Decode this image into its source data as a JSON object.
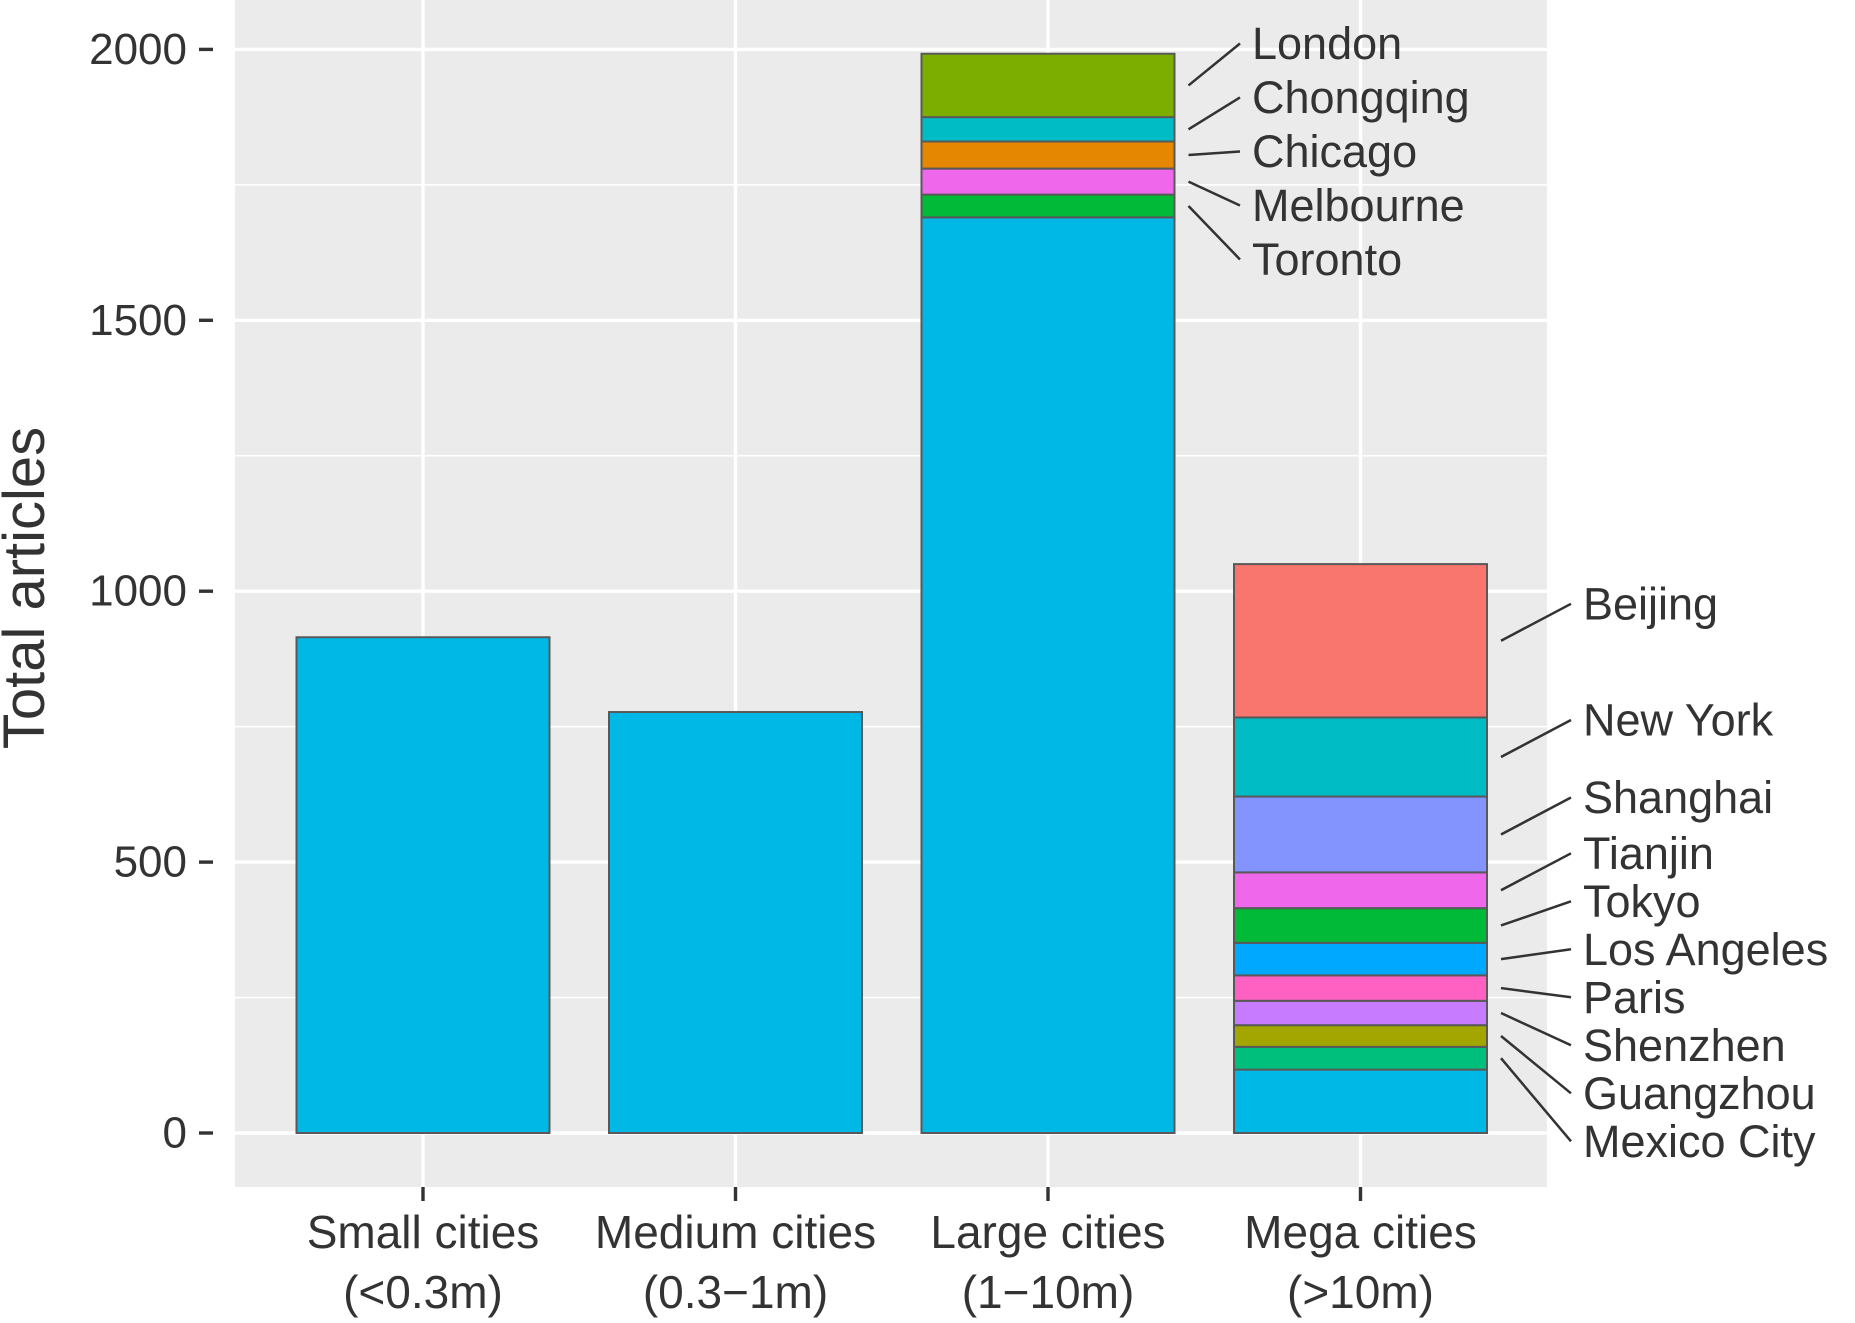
{
  "chart_data": {
    "type": "bar",
    "stacked": true,
    "ylabel": "Total articles",
    "xlabel": "",
    "ylim": [
      -95,
      2095
    ],
    "yticks": [
      0,
      500,
      1000,
      1500,
      2000
    ],
    "grid": true,
    "legend": "direct labels beside bars",
    "categories": [
      "Small cities\n(<0.3m)",
      "Medium cities\n(0.3−1m)",
      "Large cities\n(1−10m)",
      "Mega cities\n(>10m)"
    ],
    "bars": [
      {
        "category": "Small cities\n(<0.3m)",
        "segments": [
          {
            "name": "",
            "value": 915,
            "color": "#00B8E5"
          }
        ]
      },
      {
        "category": "Medium cities\n(0.3−1m)",
        "segments": [
          {
            "name": "",
            "value": 777,
            "color": "#00B8E5"
          }
        ]
      },
      {
        "category": "Large cities\n(1−10m)",
        "segments": [
          {
            "name": "",
            "value": 1690,
            "color": "#00B8E5"
          },
          {
            "name": "Toronto",
            "value": 42,
            "color": "#00BA38"
          },
          {
            "name": "Melbourne",
            "value": 48,
            "color": "#EF67EB"
          },
          {
            "name": "Chicago",
            "value": 50,
            "color": "#E58700"
          },
          {
            "name": "Chongqing",
            "value": 45,
            "color": "#00BCC4"
          },
          {
            "name": "London",
            "value": 117,
            "color": "#7CAE00"
          }
        ]
      },
      {
        "category": "Mega cities\n(>10m)",
        "segments": [
          {
            "name": "",
            "value": 117,
            "color": "#00B8E5"
          },
          {
            "name": "Mexico City",
            "value": 42,
            "color": "#00BF7D"
          },
          {
            "name": "Guangzhou",
            "value": 40,
            "color": "#A3A500"
          },
          {
            "name": "Shenzhen",
            "value": 45,
            "color": "#C77CFF"
          },
          {
            "name": "Paris",
            "value": 47,
            "color": "#FF61C3"
          },
          {
            "name": "Los Angeles",
            "value": 60,
            "color": "#00A9FF"
          },
          {
            "name": "Tokyo",
            "value": 64,
            "color": "#00BA38"
          },
          {
            "name": "Tianjin",
            "value": 66,
            "color": "#EF67EB"
          },
          {
            "name": "Shanghai",
            "value": 140,
            "color": "#8494FF"
          },
          {
            "name": "New York",
            "value": 146,
            "color": "#00BCC4"
          },
          {
            "name": "Beijing",
            "value": 283,
            "color": "#F8766D"
          }
        ]
      }
    ]
  }
}
